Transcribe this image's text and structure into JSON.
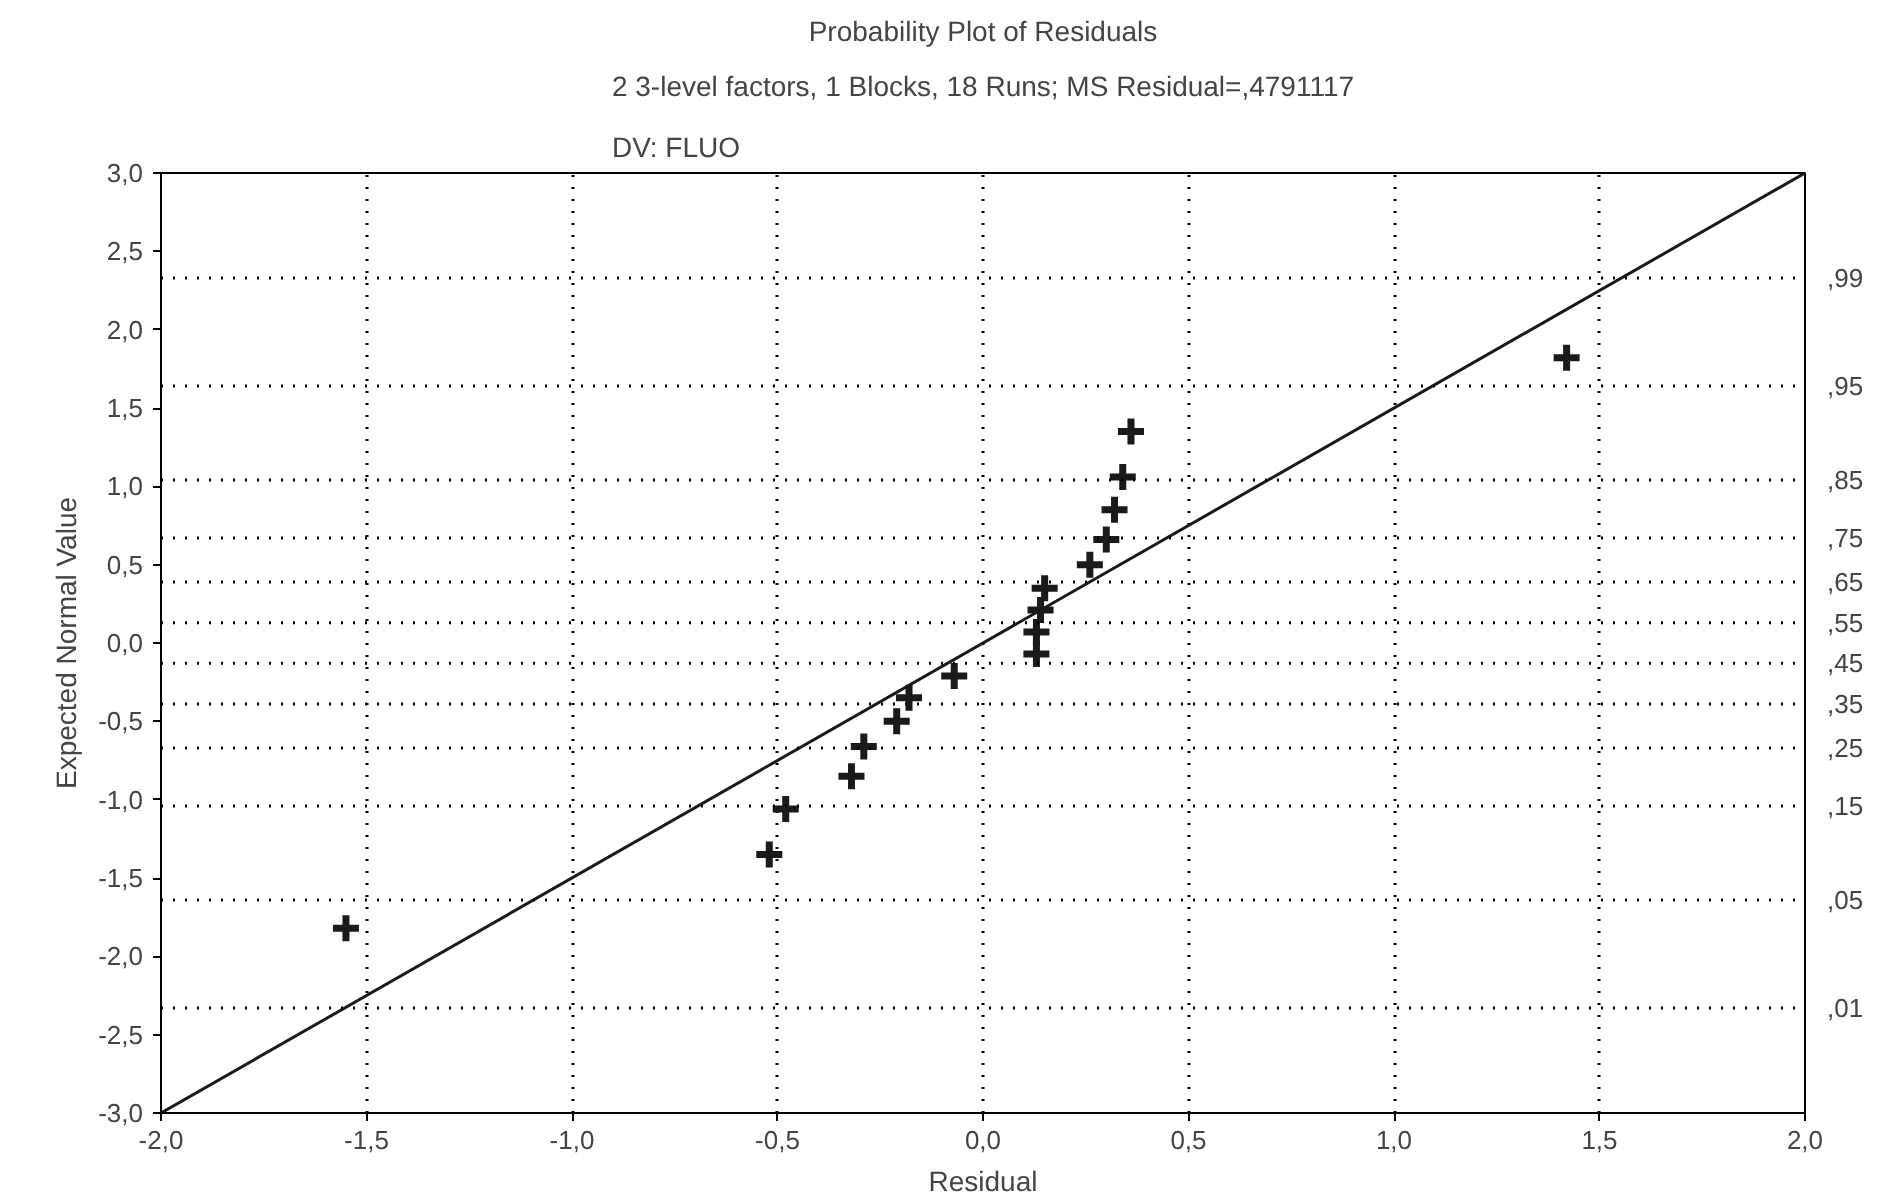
{
  "chart_data": {
    "type": "scatter",
    "title": "Probability Plot of Residuals",
    "subtitle": "2 3-level factors, 1 Blocks, 18 Runs; MS Residual=,4791117\nDV: FLUO",
    "annotations": [
      ",01",
      ",05",
      ",15",
      ",25",
      ",35",
      ",45",
      ",55",
      ",65",
      ",75",
      ",85",
      ",95",
      ",99"
    ],
    "xlabel": "Residual",
    "ylabel": "Expected Normal Value",
    "xlim": [
      -2,
      2
    ],
    "ylim": [
      -3,
      3
    ],
    "xticks": [
      {
        "value": -2,
        "label": "-2,0"
      },
      {
        "value": -1.5,
        "label": "-1,5"
      },
      {
        "value": -1,
        "label": "-1,0"
      },
      {
        "value": -0.5,
        "label": "-0,5"
      },
      {
        "value": 0,
        "label": "0,0"
      },
      {
        "value": 0.5,
        "label": "0,5"
      },
      {
        "value": 1,
        "label": "1,0"
      },
      {
        "value": 1.5,
        "label": "1,5"
      },
      {
        "value": 2,
        "label": "2,0"
      }
    ],
    "yticks": [
      {
        "value": -3,
        "label": "-3,0"
      },
      {
        "value": -2.5,
        "label": "-2,5"
      },
      {
        "value": -2,
        "label": "-2,0"
      },
      {
        "value": -1.5,
        "label": "-1,5"
      },
      {
        "value": -1,
        "label": "-1,0"
      },
      {
        "value": -0.5,
        "label": "-0,5"
      },
      {
        "value": 0,
        "label": "0,0"
      },
      {
        "value": 0.5,
        "label": "0,5"
      },
      {
        "value": 1,
        "label": "1,0"
      },
      {
        "value": 1.5,
        "label": "1,5"
      },
      {
        "value": 2,
        "label": "2,0"
      },
      {
        "value": 2.5,
        "label": "2,5"
      },
      {
        "value": 3,
        "label": "3,0"
      }
    ],
    "ref_lines": [
      {
        "axis": "y",
        "value": -2.33,
        "line_style": "dotted"
      },
      {
        "axis": "y",
        "value": -1.64,
        "line_style": "dotted"
      },
      {
        "axis": "y",
        "value": -1.04,
        "line_style": "dotted"
      },
      {
        "axis": "y",
        "value": -0.67,
        "line_style": "dotted"
      },
      {
        "axis": "y",
        "value": -0.39,
        "line_style": "dotted"
      },
      {
        "axis": "y",
        "value": -0.13,
        "line_style": "dotted"
      },
      {
        "axis": "y",
        "value": 0.13,
        "line_style": "dotted"
      },
      {
        "axis": "y",
        "value": 0.39,
        "line_style": "dotted"
      },
      {
        "axis": "y",
        "value": 0.67,
        "line_style": "dotted"
      },
      {
        "axis": "y",
        "value": 1.04,
        "line_style": "dotted"
      },
      {
        "axis": "y",
        "value": 1.64,
        "line_style": "dotted"
      },
      {
        "axis": "y",
        "value": 2.33,
        "line_style": "dotted"
      }
    ],
    "grid": "x",
    "series": [
      {
        "marker": "cross",
        "color": "#1a1a1a",
        "x": [
          -1.55,
          -0.52,
          -0.48,
          -0.32,
          -0.29,
          -0.21,
          -0.18,
          -0.07,
          0.13,
          0.13,
          0.14,
          0.15,
          0.26,
          0.3,
          0.32,
          0.34,
          0.36,
          1.42
        ],
        "values": [
          -1.82,
          -1.35,
          -1.06,
          -0.85,
          -0.66,
          -0.5,
          -0.35,
          -0.21,
          -0.07,
          0.07,
          0.21,
          0.35,
          0.5,
          0.66,
          0.85,
          1.06,
          1.35,
          1.82
        ]
      },
      {
        "type": "line",
        "line_style": "solid",
        "color": "#1a1a1a",
        "x": [
          -2,
          2
        ],
        "values": [
          -3,
          3
        ]
      }
    ]
  }
}
